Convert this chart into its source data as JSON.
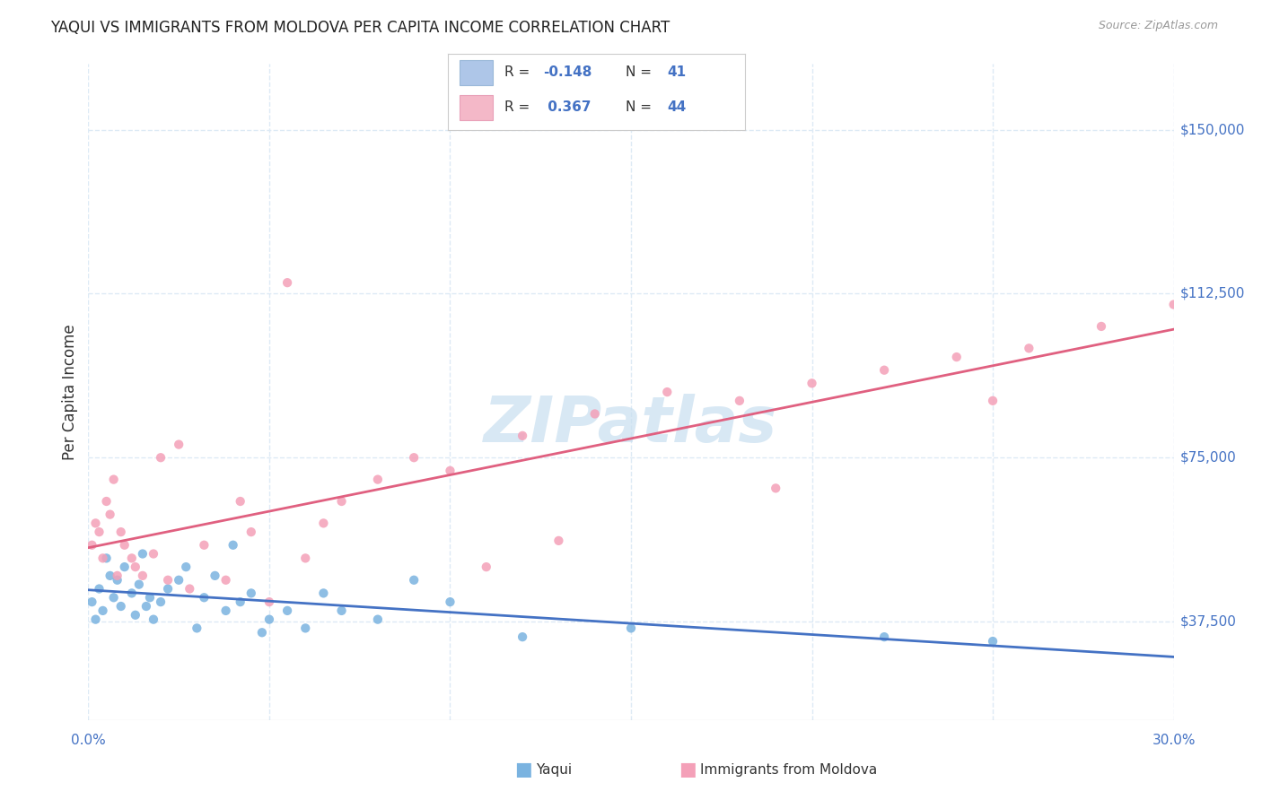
{
  "title": "YAQUI VS IMMIGRANTS FROM MOLDOVA PER CAPITA INCOME CORRELATION CHART",
  "source": "Source: ZipAtlas.com",
  "ylabel": "Per Capita Income",
  "ytick_labels": [
    "$37,500",
    "$75,000",
    "$112,500",
    "$150,000"
  ],
  "ytick_values": [
    37500,
    75000,
    112500,
    150000
  ],
  "ymin": 15000,
  "ymax": 165000,
  "xmin": 0.0,
  "xmax": 0.3,
  "series1_name": "Yaqui",
  "series1_scatter_color": "#7ab3e0",
  "series1_line_color": "#4472c4",
  "series2_name": "Immigrants from Moldova",
  "series2_scatter_color": "#f4a0b8",
  "series2_line_color": "#e06080",
  "watermark_text": "ZIPatlas",
  "watermark_color": "#c8dff0",
  "background_color": "#ffffff",
  "grid_color": "#ddeaf5",
  "right_axis_color": "#4472c4",
  "legend_box1_color": "#aec6e8",
  "legend_box2_color": "#f4b8c8",
  "legend_R1": "-0.148",
  "legend_N1": "41",
  "legend_R2": "0.367",
  "legend_N2": "44",
  "x_ticks": [
    0.0,
    0.05,
    0.1,
    0.15,
    0.2,
    0.25,
    0.3
  ],
  "yaqui_x": [
    0.001,
    0.002,
    0.003,
    0.004,
    0.005,
    0.006,
    0.007,
    0.008,
    0.009,
    0.01,
    0.012,
    0.013,
    0.014,
    0.015,
    0.016,
    0.017,
    0.018,
    0.02,
    0.022,
    0.025,
    0.027,
    0.03,
    0.032,
    0.035,
    0.038,
    0.04,
    0.042,
    0.045,
    0.048,
    0.05,
    0.055,
    0.06,
    0.065,
    0.07,
    0.08,
    0.09,
    0.1,
    0.12,
    0.15,
    0.22,
    0.25
  ],
  "yaqui_y": [
    42000,
    38000,
    45000,
    40000,
    52000,
    48000,
    43000,
    47000,
    41000,
    50000,
    44000,
    39000,
    46000,
    53000,
    41000,
    43000,
    38000,
    42000,
    45000,
    47000,
    50000,
    36000,
    43000,
    48000,
    40000,
    55000,
    42000,
    44000,
    35000,
    38000,
    40000,
    36000,
    44000,
    40000,
    38000,
    47000,
    42000,
    34000,
    36000,
    34000,
    33000
  ],
  "moldova_x": [
    0.001,
    0.002,
    0.003,
    0.004,
    0.005,
    0.006,
    0.007,
    0.008,
    0.009,
    0.01,
    0.012,
    0.013,
    0.015,
    0.018,
    0.02,
    0.022,
    0.025,
    0.028,
    0.032,
    0.038,
    0.042,
    0.045,
    0.05,
    0.055,
    0.06,
    0.065,
    0.07,
    0.08,
    0.09,
    0.1,
    0.12,
    0.14,
    0.16,
    0.18,
    0.2,
    0.22,
    0.24,
    0.26,
    0.28,
    0.3,
    0.25,
    0.19,
    0.13,
    0.11
  ],
  "moldova_y": [
    55000,
    60000,
    58000,
    52000,
    65000,
    62000,
    70000,
    48000,
    58000,
    55000,
    52000,
    50000,
    48000,
    53000,
    75000,
    47000,
    78000,
    45000,
    55000,
    47000,
    65000,
    58000,
    42000,
    115000,
    52000,
    60000,
    65000,
    70000,
    75000,
    72000,
    80000,
    85000,
    90000,
    88000,
    92000,
    95000,
    98000,
    100000,
    105000,
    110000,
    88000,
    68000,
    56000,
    50000
  ]
}
